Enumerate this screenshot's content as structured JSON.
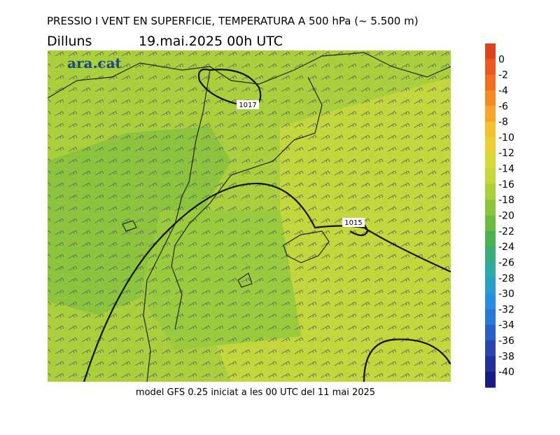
{
  "header": {
    "title": "PRESSIO I VENT EN SUPERFICIE, TEMPERATURA A 500 hPa (~ 5.500 m)",
    "day": "Dilluns",
    "date": "19.mai.2025 00h UTC"
  },
  "map": {
    "logo": "ara.cat",
    "isobars": [
      "1017",
      "1015"
    ]
  },
  "colorbar": {
    "ticks": [
      0,
      -2,
      -4,
      -6,
      -8,
      -10,
      -12,
      -14,
      -16,
      -18,
      -20,
      -22,
      -24,
      -26,
      -28,
      -30,
      -32,
      -34,
      -36,
      -38,
      -40
    ],
    "colors": [
      "#d9461e",
      "#e85a1e",
      "#f07020",
      "#f58a25",
      "#f7a52a",
      "#f5c030",
      "#ebd035",
      "#d8d73a",
      "#c3d63c",
      "#a9cf3c",
      "#8cc43e",
      "#6cbb46",
      "#4cb050",
      "#3aab7a",
      "#2fa8a8",
      "#2a9ec8",
      "#2a8ee0",
      "#2a78d8",
      "#2a5ec8",
      "#2a44b0",
      "#22309a",
      "#1a1a80"
    ]
  },
  "footer": "model GFS 0.25 iniciat a les 00 UTC del 11 mai 2025"
}
